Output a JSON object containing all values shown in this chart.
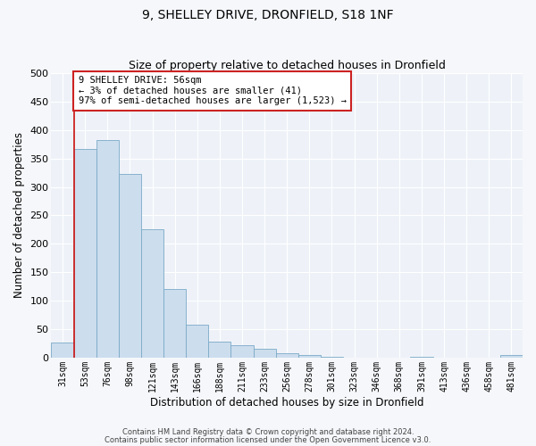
{
  "title": "9, SHELLEY DRIVE, DRONFIELD, S18 1NF",
  "subtitle": "Size of property relative to detached houses in Dronfield",
  "xlabel": "Distribution of detached houses by size in Dronfield",
  "ylabel": "Number of detached properties",
  "bar_color": "#ccdded",
  "bar_edge_color": "#7aaac8",
  "fig_bg_color": "#f5f7fa",
  "ax_bg_color": "#eef2f8",
  "grid_color": "#ffffff",
  "categories": [
    "31sqm",
    "53sqm",
    "76sqm",
    "98sqm",
    "121sqm",
    "143sqm",
    "166sqm",
    "188sqm",
    "211sqm",
    "233sqm",
    "256sqm",
    "278sqm",
    "301sqm",
    "323sqm",
    "346sqm",
    "368sqm",
    "391sqm",
    "413sqm",
    "436sqm",
    "458sqm",
    "481sqm"
  ],
  "values": [
    27,
    367,
    382,
    323,
    226,
    121,
    58,
    28,
    22,
    16,
    8,
    4,
    2,
    0,
    0,
    0,
    1,
    0,
    0,
    0,
    4
  ],
  "vline_color": "#cc2222",
  "annotation_text": "9 SHELLEY DRIVE: 56sqm\n← 3% of detached houses are smaller (41)\n97% of semi-detached houses are larger (1,523) →",
  "annotation_box_facecolor": "#ffffff",
  "annotation_box_edgecolor": "#cc2222",
  "ylim": [
    0,
    500
  ],
  "yticks": [
    0,
    50,
    100,
    150,
    200,
    250,
    300,
    350,
    400,
    450,
    500
  ],
  "footer_line1": "Contains HM Land Registry data © Crown copyright and database right 2024.",
  "footer_line2": "Contains public sector information licensed under the Open Government Licence v3.0."
}
